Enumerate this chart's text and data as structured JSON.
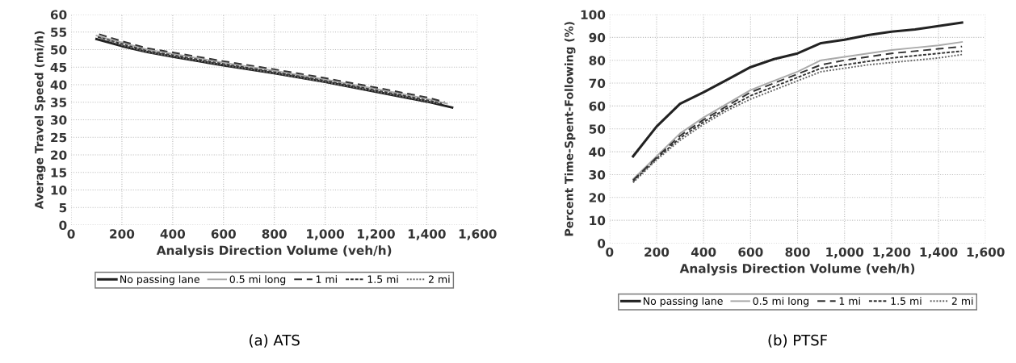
{
  "chart_data": [
    {
      "type": "line",
      "title": "(a) ATS",
      "xlabel": "Analysis Direction Volume (veh/h)",
      "ylabel": "Average Travel Speed (mi/h)",
      "x": [
        100,
        200,
        300,
        400,
        600,
        800,
        1000,
        1200,
        1400,
        1500
      ],
      "series": [
        {
          "name": "No passing lane",
          "color": "#222222",
          "line_style": "solid",
          "values": [
            53,
            51,
            49.3,
            48,
            45.5,
            43.3,
            40.8,
            38,
            35.2,
            33.5
          ]
        },
        {
          "name": "0.5 mi long",
          "color": "#aaaaaa",
          "line_style": "solid",
          "x": [
            100,
            200,
            300,
            400,
            600,
            800,
            1000,
            1200,
            1400,
            1480
          ],
          "values": [
            54,
            52,
            50,
            48.8,
            46.3,
            44,
            41.5,
            38.8,
            36,
            34.6
          ]
        },
        {
          "name": "1 mi",
          "color": "#333333",
          "line_style": "dashed",
          "x": [
            110,
            200,
            300,
            400,
            600,
            800,
            1000,
            1200,
            1400,
            1470
          ],
          "values": [
            54.4,
            52.4,
            50.4,
            49.2,
            46.7,
            44.4,
            41.9,
            39.2,
            36.4,
            35.1
          ]
        },
        {
          "name": "1.5 mi",
          "color": "#333333",
          "line_style": "densely dashed",
          "x": [
            105,
            200,
            300,
            400,
            600,
            800,
            1000,
            1200,
            1400,
            1460
          ],
          "values": [
            53.6,
            51.6,
            49.6,
            48.4,
            45.9,
            43.6,
            41.1,
            38.4,
            35.6,
            34.6
          ]
        },
        {
          "name": "2 mi",
          "color": "#666666",
          "line_style": "dotted",
          "x": [
            115,
            200,
            300,
            400,
            600,
            800,
            1000,
            1200,
            1400,
            1450
          ],
          "values": [
            53.3,
            51.3,
            49.3,
            48.1,
            45.6,
            43.3,
            40.8,
            38.1,
            35.3,
            34.6
          ]
        }
      ],
      "xlim": [
        0,
        1600
      ],
      "xticks": [
        0,
        200,
        400,
        600,
        800,
        {
          "value": 1000,
          "label": "1,000"
        },
        {
          "value": 1200,
          "label": "1,200"
        },
        {
          "value": 1400,
          "label": "1,400"
        },
        {
          "value": 1600,
          "label": "1,600"
        }
      ],
      "ylim": [
        0,
        60
      ],
      "yticks": [
        0,
        5,
        10,
        15,
        20,
        25,
        30,
        35,
        40,
        45,
        50,
        55,
        60
      ],
      "grid": true,
      "legend": "bottom"
    },
    {
      "type": "line",
      "title": "(b) PTSF",
      "xlabel": "Analysis Direction Volume (veh/h)",
      "ylabel": "Percent Time-Spent-Following (%)",
      "x": [
        100,
        200,
        300,
        400,
        500,
        600,
        700,
        800,
        900,
        1000,
        1100,
        1200,
        1300,
        1400,
        1500
      ],
      "series": [
        {
          "name": "No passing lane",
          "color": "#222222",
          "line_style": "solid",
          "values": [
            38,
            51,
            61,
            66,
            71.5,
            77,
            80.5,
            83,
            87.5,
            89,
            91,
            92.5,
            93.5,
            95,
            96.5
          ]
        },
        {
          "name": "0.5 mi long",
          "color": "#aaaaaa",
          "line_style": "solid",
          "values": [
            28,
            38,
            48,
            55,
            61,
            67,
            71,
            75,
            80,
            81.5,
            83,
            84.5,
            85.5,
            86.5,
            88
          ]
        },
        {
          "name": "1 mi",
          "color": "#333333",
          "line_style": "dashed",
          "values": [
            27.5,
            37.5,
            47,
            54,
            60,
            66,
            70,
            74,
            78,
            80,
            81.5,
            83,
            84,
            85,
            86
          ]
        },
        {
          "name": "1.5 mi",
          "color": "#333333",
          "line_style": "densely dashed",
          "values": [
            27,
            37,
            46,
            53,
            59,
            64.5,
            68.5,
            72.5,
            76.5,
            78,
            79.5,
            81,
            82,
            83,
            84
          ]
        },
        {
          "name": "2 mi",
          "color": "#666666",
          "line_style": "dotted",
          "values": [
            26.5,
            36.5,
            45,
            52,
            58,
            63,
            67,
            71,
            75,
            76.5,
            78,
            79,
            80,
            81,
            82.5
          ]
        }
      ],
      "xlim": [
        0,
        1600
      ],
      "xticks": [
        0,
        200,
        400,
        600,
        800,
        {
          "value": 1000,
          "label": "1,000"
        },
        {
          "value": 1200,
          "label": "1,200"
        },
        {
          "value": 1400,
          "label": "1,400"
        },
        {
          "value": 1600,
          "label": "1,600"
        }
      ],
      "ylim": [
        0,
        100
      ],
      "yticks": [
        0,
        10,
        20,
        30,
        40,
        50,
        60,
        70,
        80,
        90,
        100
      ],
      "grid": true,
      "legend": "bottom"
    }
  ]
}
